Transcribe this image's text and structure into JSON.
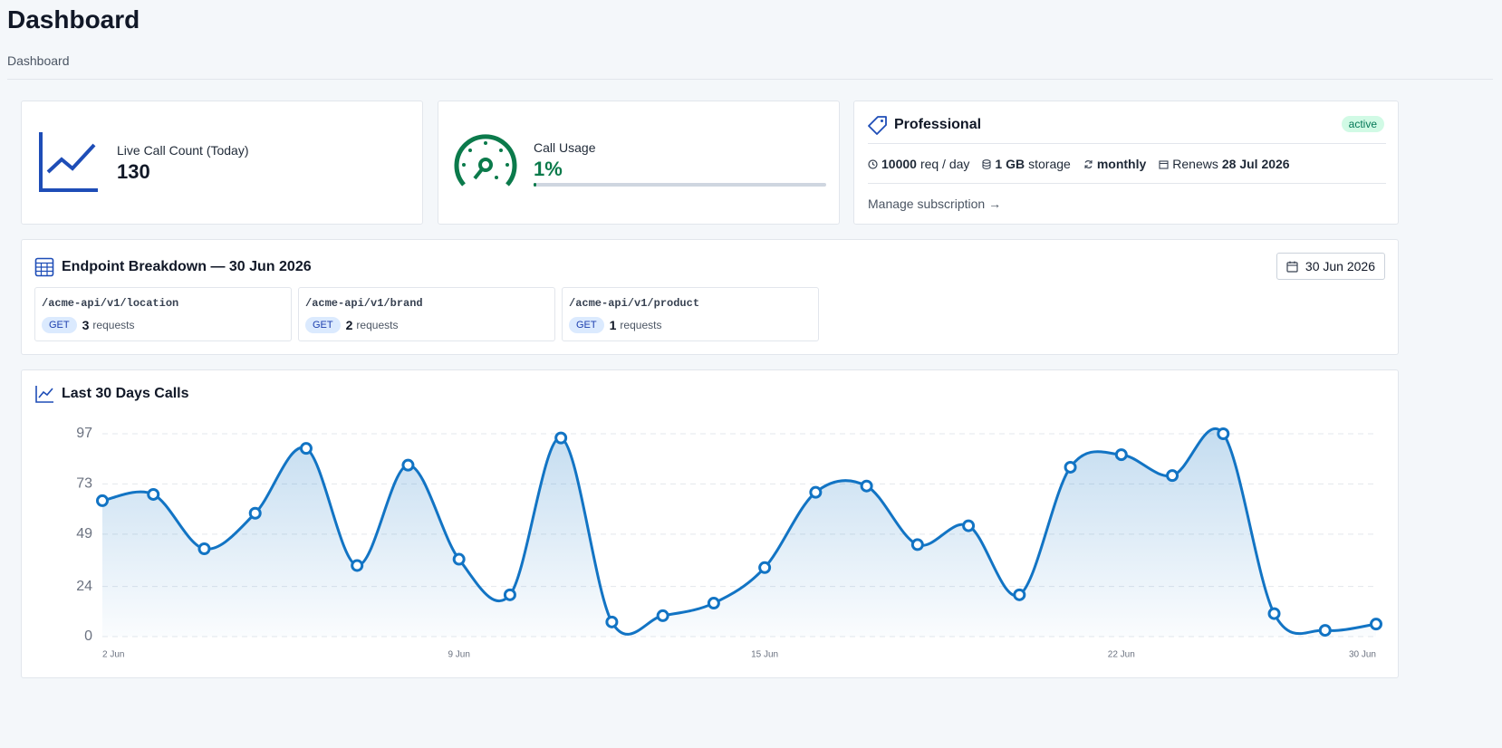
{
  "header": {
    "title": "Dashboard",
    "breadcrumb": "Dashboard"
  },
  "cards": {
    "live_calls": {
      "label": "Live Call Count (Today)",
      "value": 130
    },
    "call_usage": {
      "label": "Call Usage",
      "value": 1,
      "value_label": "1%"
    },
    "plan": {
      "name": "Professional",
      "status": "active",
      "features": [
        {
          "strong": "10000",
          "text": "req / day"
        },
        {
          "strong": "1 GB",
          "text": "storage"
        },
        {
          "strong": "monthly"
        },
        {
          "text": "Renews",
          "strong": "28 Jul 2026"
        }
      ],
      "link": "Manage subscription →"
    }
  },
  "endpoints": {
    "title": "Endpoint Breakdown — 30 Jun 2026",
    "date_button": "30 Jun 2026",
    "items": [
      {
        "path": "/acme-api/v1/location",
        "method": "GET",
        "count": 3,
        "unit": "requests"
      },
      {
        "path": "/acme-api/v1/brand",
        "method": "GET",
        "count": 2,
        "unit": "requests"
      },
      {
        "path": "/acme-api/v1/product",
        "method": "GET",
        "count": 1,
        "unit": "requests"
      }
    ]
  },
  "chart_data": {
    "type": "line",
    "area": true,
    "title": "Last 30 Days Calls",
    "categories": [
      "2 Jun",
      null,
      null,
      null,
      null,
      null,
      null,
      "9 Jun",
      null,
      null,
      null,
      null,
      null,
      "15 Jun",
      null,
      null,
      null,
      null,
      null,
      null,
      "22 Jun",
      null,
      null,
      null,
      null,
      "30 Jun"
    ],
    "series": [
      {
        "name": "Calls",
        "color": "#1274c4",
        "values": [
          65,
          68,
          42,
          59,
          90,
          34,
          82,
          37,
          20,
          95,
          7,
          10,
          16,
          33,
          69,
          72,
          44,
          53,
          20,
          81,
          87,
          77,
          97,
          11,
          3,
          6
        ]
      }
    ],
    "ylim": [
      0,
      97
    ],
    "yticks": [
      0,
      24,
      49,
      73,
      97
    ],
    "grid": true
  }
}
